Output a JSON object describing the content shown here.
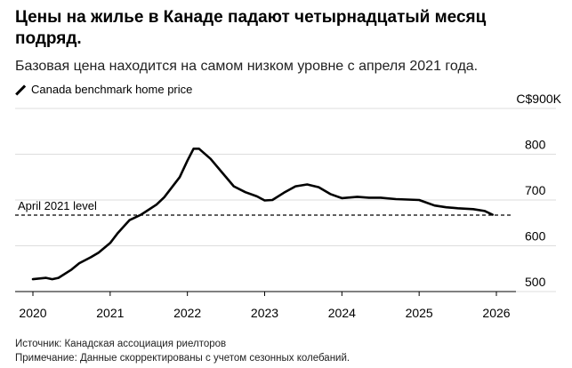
{
  "headline": "Цены на жилье в Канаде падают четырнадцатый месяц подряд.",
  "subtitle": "Базовая цена находится на самом низком уровне с апреля 2021 года.",
  "source": "Источник: Канадская ассоциация риелторов",
  "note": "Примечание: Данные скорректированы с учетом сезонных колебаний.",
  "colors": {
    "line": "#000000",
    "grid": "#dddddd",
    "text": "#000000"
  },
  "chart_data": {
    "type": "line",
    "title": "Цены на жилье в Канаде падают четырнадцатый месяц подряд.",
    "subtitle": "Базовая цена находится на самом низком уровне с апреля 2021 года.",
    "series": [
      {
        "name": "Canada benchmark home price",
        "x": [
          2020.0,
          2020.17,
          2020.25,
          2020.33,
          2020.5,
          2020.6,
          2020.75,
          2020.85,
          2021.0,
          2021.1,
          2021.25,
          2021.4,
          2021.6,
          2021.7,
          2021.9,
          2022.0,
          2022.08,
          2022.15,
          2022.3,
          2022.45,
          2022.6,
          2022.75,
          2022.9,
          2023.0,
          2023.1,
          2023.25,
          2023.4,
          2023.55,
          2023.7,
          2023.85,
          2024.0,
          2024.2,
          2024.35,
          2024.5,
          2024.7,
          2024.85,
          2025.0,
          2025.2,
          2025.35,
          2025.5,
          2025.7,
          2025.85,
          2025.95
        ],
        "y": [
          527,
          530,
          527,
          530,
          548,
          562,
          575,
          585,
          606,
          628,
          656,
          668,
          690,
          706,
          750,
          786,
          812,
          812,
          790,
          760,
          730,
          717,
          708,
          699,
          700,
          716,
          730,
          734,
          728,
          713,
          704,
          707,
          705,
          705,
          702,
          701,
          700,
          688,
          684,
          682,
          680,
          676,
          668
        ]
      }
    ],
    "reference_line": {
      "label": "April 2021 level",
      "y": 667
    },
    "x_ticks": [
      "2020",
      "2021",
      "2022",
      "2023",
      "2024",
      "2025",
      "2026"
    ],
    "x_tick_values": [
      2020,
      2021,
      2022,
      2023,
      2024,
      2025,
      2026
    ],
    "y_ticks": [
      "500",
      "600",
      "700",
      "800"
    ],
    "y_tick_values": [
      500,
      600,
      700,
      800
    ],
    "y_top_label": "C$900K",
    "xlim": [
      2020,
      2026
    ],
    "ylim": [
      500,
      900
    ],
    "grid": true
  }
}
